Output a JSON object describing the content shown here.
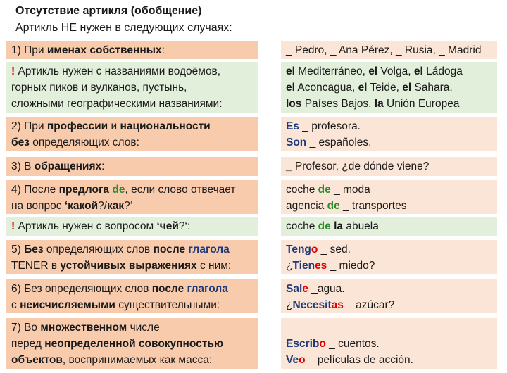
{
  "header": {
    "title": "Отсутствие артикля (обобщение)",
    "subtitle": "Артикль НЕ нужен в следующих случаях:"
  },
  "rows": [
    {
      "left": [
        [
          {
            "t": "1) При "
          },
          {
            "t": "именах собственных",
            "s": "b"
          },
          {
            "t": ":"
          }
        ]
      ],
      "right": [
        [
          {
            "t": "_ Pedro, _ Ana Pérez, _ Rusia, _ Madrid"
          }
        ]
      ]
    },
    {
      "left": [
        [
          {
            "t": "!",
            "s": "b rd"
          },
          {
            "t": " Артикль нужен с названиями водоёмов,"
          }
        ],
        [
          {
            "t": "горных пиков и вулканов, пустынь,"
          }
        ],
        [
          {
            "t": "сложными географическими названиями:"
          }
        ]
      ],
      "right": [
        [
          {
            "t": "el",
            "s": "b"
          },
          {
            "t": " Mediterráneo, "
          },
          {
            "t": "el",
            "s": "b"
          },
          {
            "t": " Volga, "
          },
          {
            "t": "el",
            "s": "b"
          },
          {
            "t": " Ládoga"
          }
        ],
        [
          {
            "t": "el",
            "s": "b"
          },
          {
            "t": " Aconcagua, "
          },
          {
            "t": "el",
            "s": "b"
          },
          {
            "t": " Teide, "
          },
          {
            "t": "el",
            "s": "b"
          },
          {
            "t": " Sahara,"
          }
        ],
        [
          {
            "t": "los",
            "s": "b"
          },
          {
            "t": " Países Bajos, "
          },
          {
            "t": "la",
            "s": "b"
          },
          {
            "t": " Unión Europea"
          }
        ]
      ]
    },
    {
      "left": [
        [
          {
            "t": "2) При "
          },
          {
            "t": "профессии",
            "s": "b"
          },
          {
            "t": " и "
          },
          {
            "t": "национальности",
            "s": "b"
          }
        ],
        [
          {
            "t": "без",
            "s": "b"
          },
          {
            "t": " определяющих слов:"
          }
        ]
      ],
      "right": [
        [
          {
            "t": "Es",
            "s": "b bl"
          },
          {
            "t": " _ profesora."
          }
        ],
        [
          {
            "t": "Son",
            "s": "b bl"
          },
          {
            "t": " _ españoles."
          }
        ]
      ]
    },
    {
      "left": [
        [
          {
            "t": "3) В "
          },
          {
            "t": "обращениях",
            "s": "b"
          },
          {
            "t": ":"
          }
        ]
      ],
      "right": [
        [
          {
            "t": "_",
            "s": "b"
          },
          {
            "t": " Profesor, ¿de dónde viene?"
          }
        ]
      ]
    },
    {
      "left": [
        [
          {
            "t": "4) После "
          },
          {
            "t": "предлога",
            "s": "b"
          },
          {
            "t": " "
          },
          {
            "t": "de",
            "s": "b gr"
          },
          {
            "t": ", если слово отвечает"
          }
        ],
        [
          {
            "t": "на вопрос "
          },
          {
            "t": "‘какой",
            "s": "b"
          },
          {
            "t": "?/"
          },
          {
            "t": "как",
            "s": "b"
          },
          {
            "t": "?‘"
          }
        ]
      ],
      "right": [
        [
          {
            "t": "coche "
          },
          {
            "t": "de",
            "s": "b gr"
          },
          {
            "t": " _ moda"
          }
        ],
        [
          {
            "t": "agencia "
          },
          {
            "t": "de",
            "s": "b gr"
          },
          {
            "t": " _ transportes"
          }
        ]
      ]
    },
    {
      "left": [
        [
          {
            "t": "!",
            "s": "b rd"
          },
          {
            "t": " Артикль нужен с вопросом "
          },
          {
            "t": "‘чей",
            "s": "b"
          },
          {
            "t": "?‘:"
          }
        ]
      ],
      "right": [
        [
          {
            "t": "coche "
          },
          {
            "t": "de",
            "s": "b gr"
          },
          {
            "t": " "
          },
          {
            "t": "la",
            "s": "b"
          },
          {
            "t": " abuela"
          }
        ]
      ]
    },
    {
      "left": [
        [
          {
            "t": "5) "
          },
          {
            "t": "Без",
            "s": "b"
          },
          {
            "t": " определяющих слов "
          },
          {
            "t": "после",
            "s": "b"
          },
          {
            "t": " "
          },
          {
            "t": "глагола",
            "s": "b bl"
          }
        ],
        [
          {
            "t": "TENER в "
          },
          {
            "t": "устойчивых выражениях",
            "s": "b"
          },
          {
            "t": " с ним:"
          }
        ]
      ],
      "right": [
        [
          {
            "t": "Teng",
            "s": "b bl"
          },
          {
            "t": "o",
            "s": "b rd"
          },
          {
            "t": " _ sed."
          }
        ],
        [
          {
            "t": "¿"
          },
          {
            "t": "Tien",
            "s": "b bl"
          },
          {
            "t": "es",
            "s": "b rd"
          },
          {
            "t": " _ miedo?"
          }
        ]
      ]
    },
    {
      "left": [
        [
          {
            "t": "6)  Без определяющих слов "
          },
          {
            "t": "после",
            "s": "b"
          },
          {
            "t": " "
          },
          {
            "t": "глагола",
            "s": "b bl"
          }
        ],
        [
          {
            "t": "с "
          },
          {
            "t": "неисчисляемыми",
            "s": "b"
          },
          {
            "t": " существительными:"
          }
        ]
      ],
      "right": [
        [
          {
            "t": "Sal",
            "s": "b bl"
          },
          {
            "t": "e",
            "s": "b rd"
          },
          {
            "t": " _agua."
          }
        ],
        [
          {
            "t": "¿"
          },
          {
            "t": "Necesit",
            "s": "b bl"
          },
          {
            "t": "as",
            "s": "b rd"
          },
          {
            "t": " _ azúcar?"
          }
        ]
      ]
    },
    {
      "left": [
        [
          {
            "t": "7) Во "
          },
          {
            "t": "множественном",
            "s": "b"
          },
          {
            "t": " числе"
          }
        ],
        [
          {
            "t": "перед "
          },
          {
            "t": "неопределенной совокупностью",
            "s": "b"
          }
        ],
        [
          {
            "t": "объектов",
            "s": "b"
          },
          {
            "t": ", воспринимаемых как масса:"
          }
        ]
      ],
      "right": [
        [
          {
            "t": "Escrib",
            "s": "b bl"
          },
          {
            "t": "o",
            "s": "b rd"
          },
          {
            "t": " _ cuentos."
          }
        ],
        [
          {
            "t": "Ve",
            "s": "b bl"
          },
          {
            "t": "o",
            "s": "b rd"
          },
          {
            "t": " _ películas de acción."
          }
        ]
      ]
    }
  ]
}
